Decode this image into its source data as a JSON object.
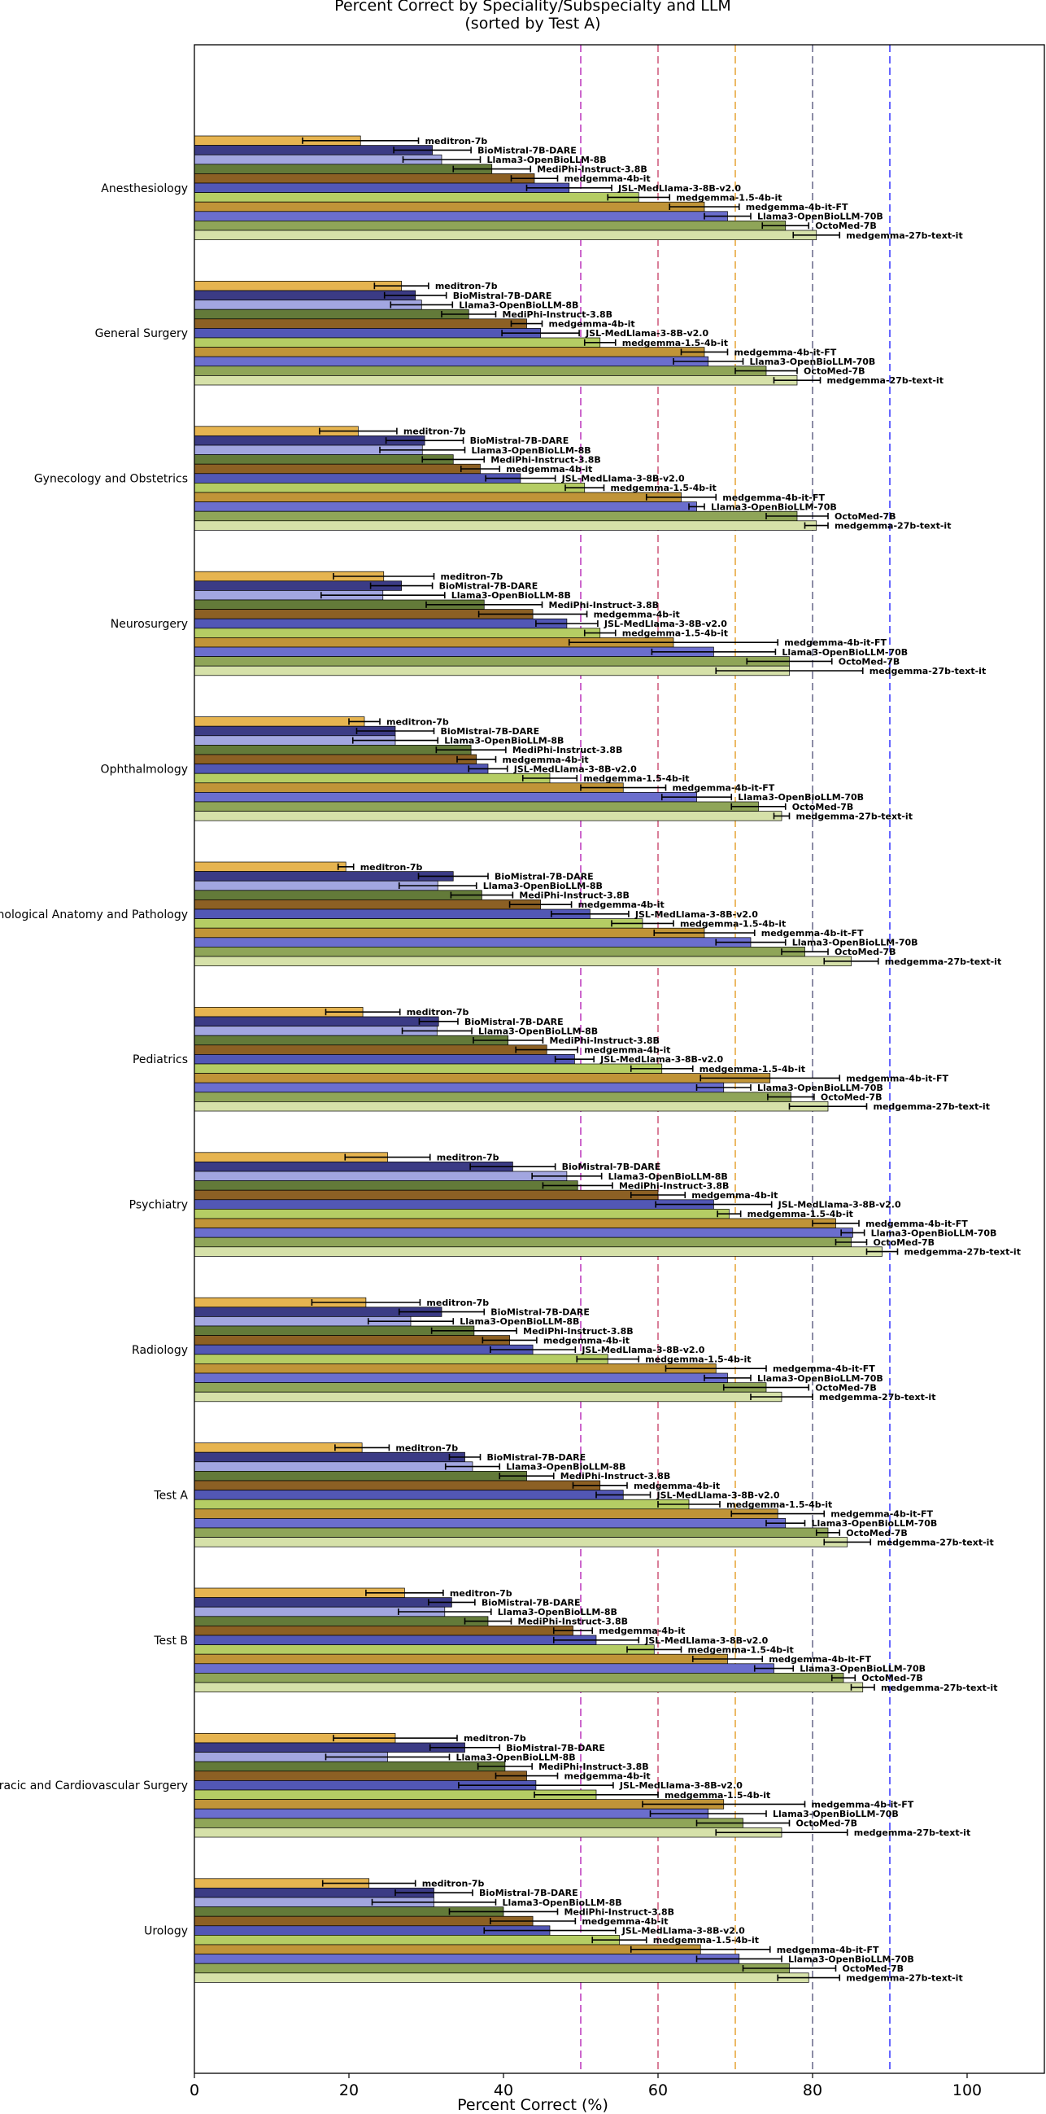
{
  "chart_data": {
    "type": "bar",
    "orientation": "horizontal",
    "title": "Percent Correct by Speciality/Subspecialty and LLM",
    "subtitle": "(sorted by Test A)",
    "xlabel": "Percent Correct (%)",
    "ylabel": "",
    "xlim": [
      0,
      110
    ],
    "xticks": [
      "0",
      "20",
      "40",
      "60",
      "80",
      "100"
    ],
    "grid": false,
    "legend": "none",
    "reference_lines": [
      {
        "x": 50,
        "color": "#c040c0"
      },
      {
        "x": 60,
        "color": "#d06080"
      },
      {
        "x": 70,
        "color": "#e8a840"
      },
      {
        "x": 80,
        "color": "#707090"
      },
      {
        "x": 90,
        "color": "#4040ff"
      }
    ],
    "categories": [
      "Anesthesiology",
      "General Surgery",
      "Gynecology and Obstetrics",
      "Neurosurgery",
      "Ophthalmology",
      "Pathological Anatomy and Pathology",
      "Pediatrics",
      "Psychiatry",
      "Radiology",
      "Test A",
      "Test B",
      "Thoracic and Cardiovascular Surgery",
      "Urology"
    ],
    "series": [
      {
        "name": "meditron-7b",
        "color": "#e6b450",
        "values": [
          21.5,
          26.8,
          21.2,
          24.5,
          22.0,
          19.6,
          21.8,
          25.0,
          22.2,
          21.7,
          27.2,
          26.0,
          22.6
        ]
      },
      {
        "name": "BioMistral-7B-DARE",
        "color": "#3b3b85",
        "values": [
          30.8,
          28.6,
          29.8,
          26.8,
          26.0,
          33.5,
          31.6,
          41.2,
          32.0,
          35.0,
          33.3,
          35.0,
          31.0
        ]
      },
      {
        "name": "Llama3-OpenBioLLM-8B",
        "color": "#a2a6e0",
        "values": [
          32.0,
          29.4,
          29.5,
          24.4,
          26.0,
          31.5,
          31.4,
          48.2,
          28.0,
          36.0,
          32.4,
          25.0,
          31.0
        ]
      },
      {
        "name": "MediPhi-Instruct-3.8B",
        "color": "#637a39",
        "values": [
          38.5,
          35.5,
          33.5,
          37.5,
          35.8,
          37.2,
          40.6,
          49.6,
          36.2,
          43.0,
          38.0,
          40.2,
          40.0
        ]
      },
      {
        "name": "medgemma-4b-it",
        "color": "#8c6024",
        "values": [
          44.0,
          43.0,
          37.0,
          43.8,
          36.5,
          44.8,
          45.6,
          60.0,
          40.8,
          52.5,
          49.0,
          43.0,
          43.8
        ]
      },
      {
        "name": "JSL-MedLlama-3-8B-v2.0",
        "color": "#5257b5",
        "values": [
          48.5,
          44.8,
          42.2,
          48.2,
          38.0,
          51.2,
          49.2,
          67.2,
          43.8,
          55.5,
          52.0,
          44.2,
          46.0
        ]
      },
      {
        "name": "medgemma-1.5-4b-it",
        "color": "#b5cd64",
        "values": [
          57.5,
          52.5,
          50.5,
          52.5,
          46.0,
          58.0,
          60.5,
          69.2,
          53.5,
          64.0,
          59.5,
          52.0,
          55.0
        ]
      },
      {
        "name": "medgemma-4b-it-FT",
        "color": "#c09438",
        "values": [
          66.0,
          66.0,
          63.0,
          62.0,
          55.5,
          66.0,
          74.5,
          83.0,
          67.5,
          75.5,
          69.0,
          68.5,
          65.5
        ]
      },
      {
        "name": "Llama3-OpenBioLLM-70B",
        "color": "#6b6ecd",
        "values": [
          69.0,
          66.5,
          65.0,
          67.2,
          65.0,
          72.0,
          68.5,
          85.2,
          69.0,
          76.5,
          75.0,
          66.5,
          70.5
        ]
      },
      {
        "name": "OctoMed-7B",
        "color": "#8fa558",
        "values": [
          76.5,
          74.0,
          78.0,
          77.0,
          73.0,
          79.0,
          77.2,
          85.0,
          74.0,
          82.0,
          84.0,
          71.0,
          77.0
        ]
      },
      {
        "name": "medgemma-27b-text-it",
        "color": "#d6e1a9",
        "values": [
          80.5,
          78.0,
          80.5,
          77.0,
          76.0,
          85.0,
          82.0,
          89.0,
          76.0,
          84.5,
          86.5,
          76.0,
          79.5
        ]
      }
    ],
    "error_bars": [
      [
        7.5,
        3.5,
        5.0,
        6.5,
        2.0,
        1.0,
        4.8,
        5.5,
        7.0,
        3.5,
        5.0,
        8.0,
        6.0
      ],
      [
        5.0,
        4.0,
        5.0,
        4.0,
        5.0,
        4.5,
        2.5,
        5.5,
        5.5,
        2.0,
        3.0,
        4.5,
        5.0
      ],
      [
        5.0,
        4.0,
        5.5,
        8.0,
        5.5,
        5.0,
        4.5,
        4.5,
        5.5,
        3.5,
        6.0,
        8.0,
        8.0
      ],
      [
        5.0,
        3.5,
        4.0,
        7.5,
        4.5,
        4.0,
        4.5,
        4.5,
        5.5,
        3.5,
        3.0,
        3.5,
        7.0
      ],
      [
        3.0,
        2.0,
        2.5,
        7.0,
        2.5,
        4.0,
        4.0,
        3.5,
        3.5,
        3.5,
        2.5,
        4.0,
        5.5
      ],
      [
        5.5,
        5.0,
        4.5,
        4.0,
        2.5,
        5.0,
        2.5,
        7.5,
        5.5,
        3.5,
        5.5,
        10.0,
        8.5
      ],
      [
        4.0,
        2.0,
        2.5,
        2.0,
        3.5,
        4.0,
        4.0,
        1.5,
        4.0,
        4.0,
        3.5,
        8.0,
        3.5
      ],
      [
        4.5,
        3.0,
        4.5,
        13.5,
        5.5,
        6.5,
        9.0,
        3.0,
        6.5,
        6.0,
        4.5,
        10.5,
        9.0
      ],
      [
        3.0,
        4.5,
        1.0,
        8.0,
        4.5,
        4.5,
        3.5,
        1.5,
        3.0,
        2.5,
        2.5,
        7.5,
        5.5
      ],
      [
        3.0,
        4.0,
        4.0,
        5.5,
        3.5,
        3.0,
        3.0,
        2.0,
        5.5,
        1.5,
        1.5,
        6.0,
        6.0
      ],
      [
        3.0,
        3.0,
        1.5,
        9.5,
        1.0,
        3.5,
        5.0,
        2.0,
        4.0,
        3.0,
        1.5,
        8.5,
        4.0
      ]
    ]
  }
}
